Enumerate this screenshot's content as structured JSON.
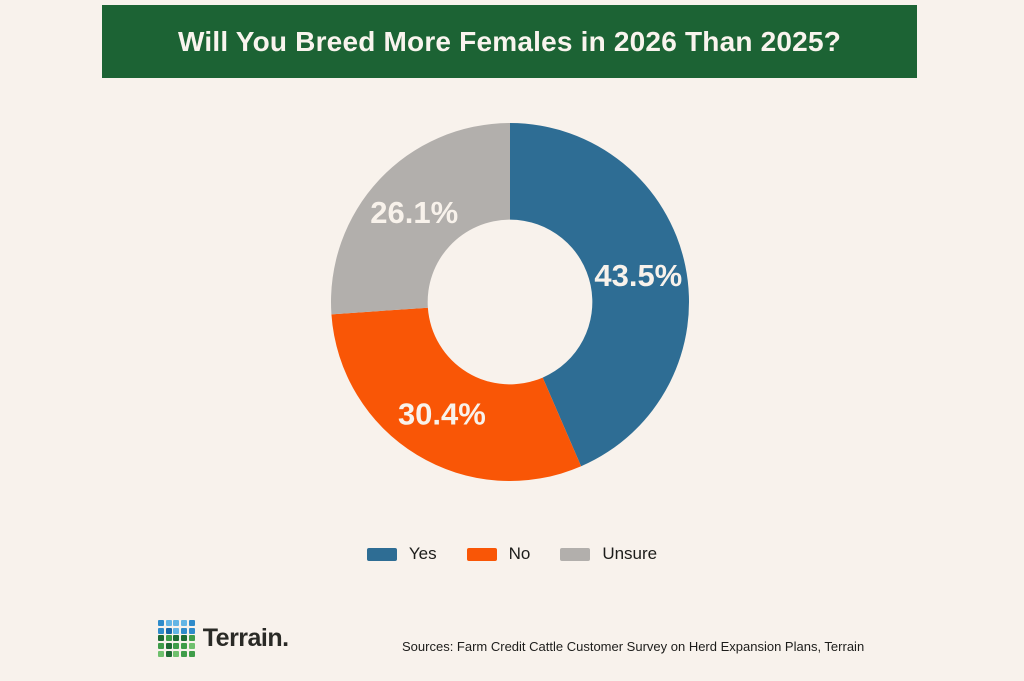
{
  "page": {
    "bg": "#f8f2ec"
  },
  "title_banner": {
    "text": "Will You Breed More Females in 2026 Than 2025?",
    "bg": "#1c6334",
    "text_color": "#f9f4ee"
  },
  "chart_data": {
    "type": "pie",
    "subtype": "donut",
    "title": "Will You Breed More Females in 2026 Than 2025?",
    "labels": [
      "Yes",
      "No",
      "Unsure"
    ],
    "values": [
      43.5,
      30.4,
      26.1
    ],
    "value_labels": [
      "43.5%",
      "30.4%",
      "26.1%"
    ],
    "colors": [
      "#2e6d94",
      "#f95606",
      "#b2afac"
    ],
    "value_label_color": "#f8f2eb",
    "start_angle_deg": 0,
    "direction": "clockwise",
    "inner_radius_ratio": 0.46,
    "legend_position": "bottom"
  },
  "legend": {
    "items": [
      {
        "label": "Yes",
        "color": "#2e6d94"
      },
      {
        "label": "No",
        "color": "#f95606"
      },
      {
        "label": "Unsure",
        "color": "#b2afac"
      }
    ]
  },
  "footer": {
    "logo_text": "Terrain.",
    "source_text": "Sources: Farm Credit Cattle Customer Survey on Herd Expansion Plans, Terrain",
    "logo_grid": {
      "colors": {
        "b1": "#63b5e5",
        "b2": "#2f8bca",
        "b3": "#1767a9",
        "g1": "#6fc06d",
        "g2": "#3f9d49",
        "g3": "#1e6b33"
      },
      "pattern": [
        [
          "b2",
          "b1",
          "b1",
          "b1",
          "b2"
        ],
        [
          "b2",
          "b3",
          "b1",
          "b2",
          "b2"
        ],
        [
          "g3",
          "g2",
          "g3",
          "g3",
          "g2"
        ],
        [
          "g2",
          "g3",
          "g2",
          "g2",
          "g1"
        ],
        [
          "g1",
          "g3",
          "g1",
          "g2",
          "g2"
        ]
      ]
    }
  }
}
